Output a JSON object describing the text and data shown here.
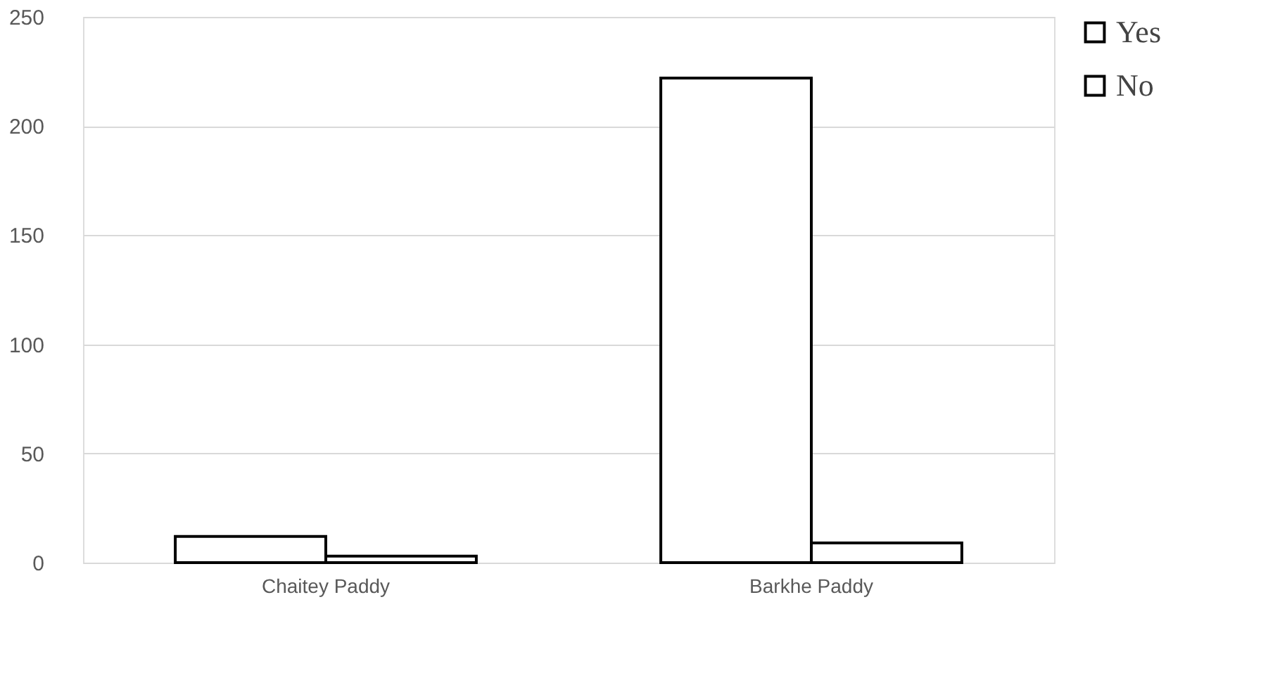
{
  "chart_data": {
    "type": "bar",
    "categories": [
      "Chaitey Paddy",
      "Barkhe Paddy"
    ],
    "series": [
      {
        "name": "Yes",
        "color": "#ffffff",
        "values": [
          12,
          222
        ]
      },
      {
        "name": "No",
        "color": "#ffffff",
        "values": [
          3,
          9
        ]
      }
    ],
    "ylim": [
      0,
      250
    ],
    "yticks": [
      0,
      50,
      100,
      150,
      200,
      250
    ],
    "grid": "y",
    "legend": "right"
  }
}
